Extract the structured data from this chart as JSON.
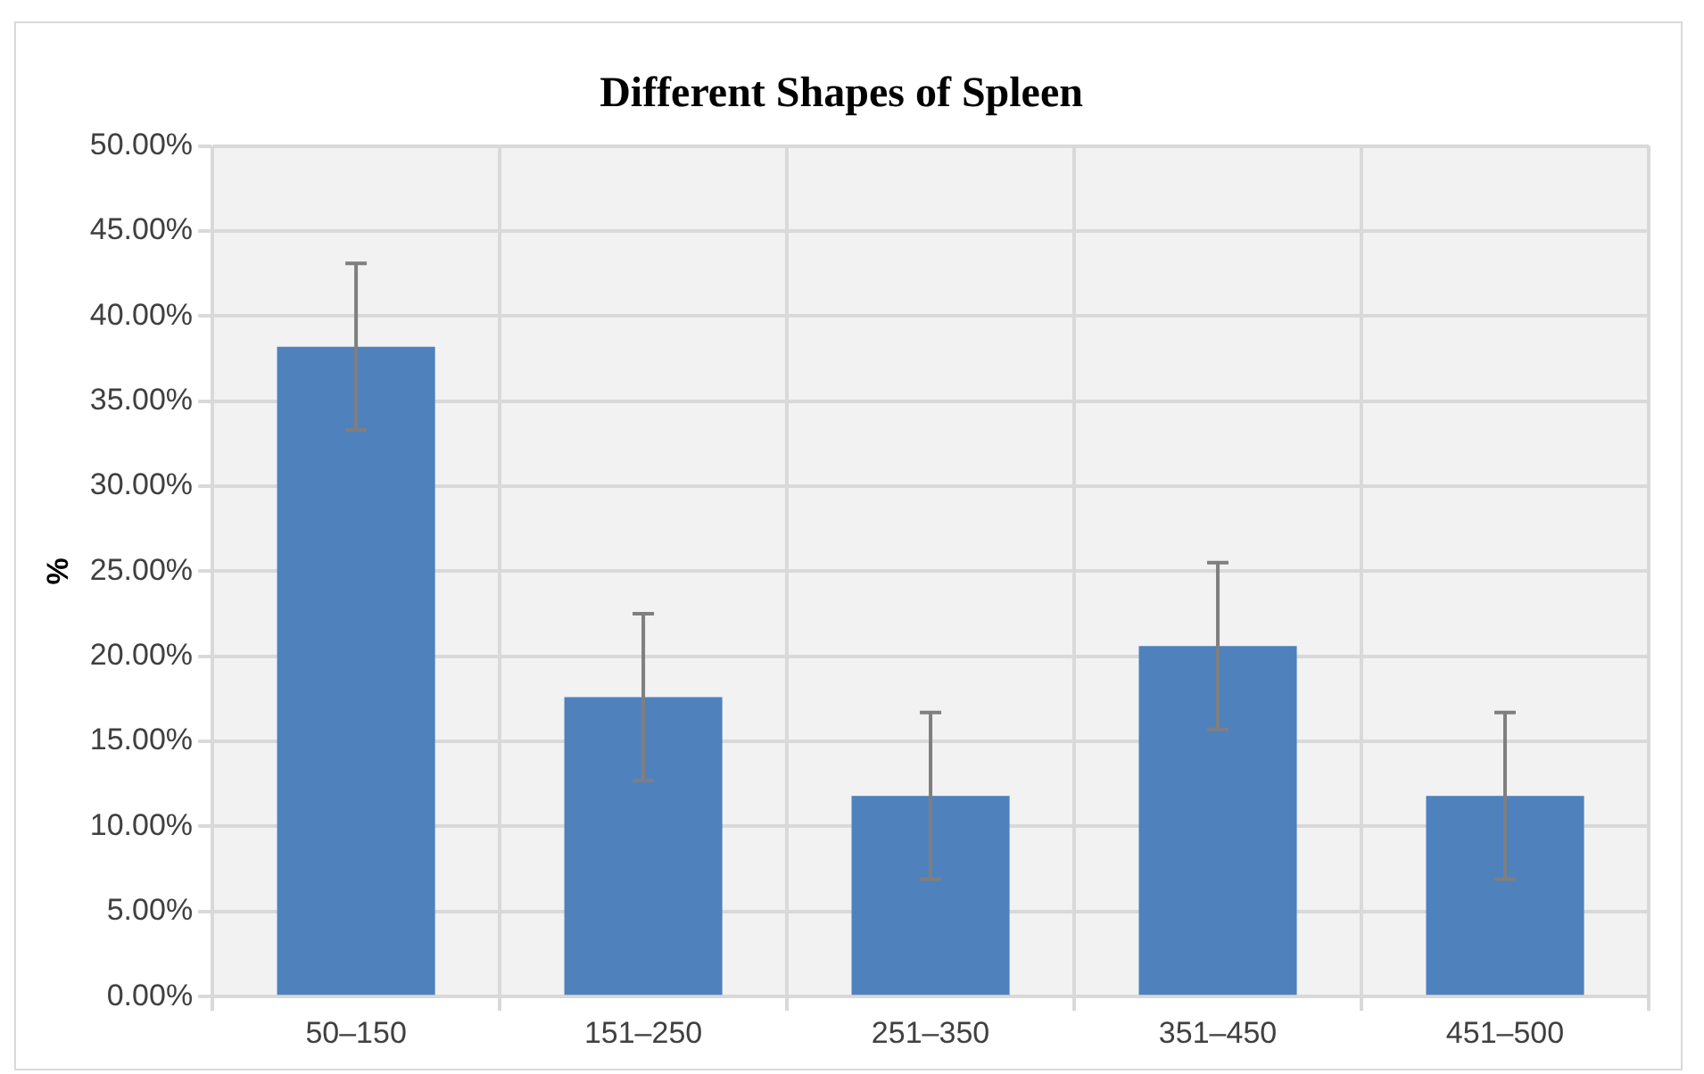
{
  "chart_data": {
    "type": "bar",
    "title": "Different Shapes of Spleen",
    "ylabel": "%",
    "categories": [
      "50–150",
      "151–250",
      "251–350",
      "351–450",
      "451–500"
    ],
    "values": [
      38.2,
      17.6,
      11.8,
      20.6,
      11.8
    ],
    "errors": [
      4.9,
      4.9,
      4.9,
      4.9,
      4.9
    ],
    "color": "#4f81bd",
    "ylim": [
      0,
      50
    ],
    "yticks": [
      {
        "value": 0,
        "label": "0.00%"
      },
      {
        "value": 5,
        "label": "5.00%"
      },
      {
        "value": 10,
        "label": "10.00%"
      },
      {
        "value": 15,
        "label": "15.00%"
      },
      {
        "value": 20,
        "label": "20.00%"
      },
      {
        "value": 25,
        "label": "25.00%"
      },
      {
        "value": 30,
        "label": "30.00%"
      },
      {
        "value": 35,
        "label": "35.00%"
      },
      {
        "value": 40,
        "label": "40.00%"
      },
      {
        "value": 45,
        "label": "45.00%"
      },
      {
        "value": 50,
        "label": "50.00%"
      }
    ],
    "grid": true
  }
}
